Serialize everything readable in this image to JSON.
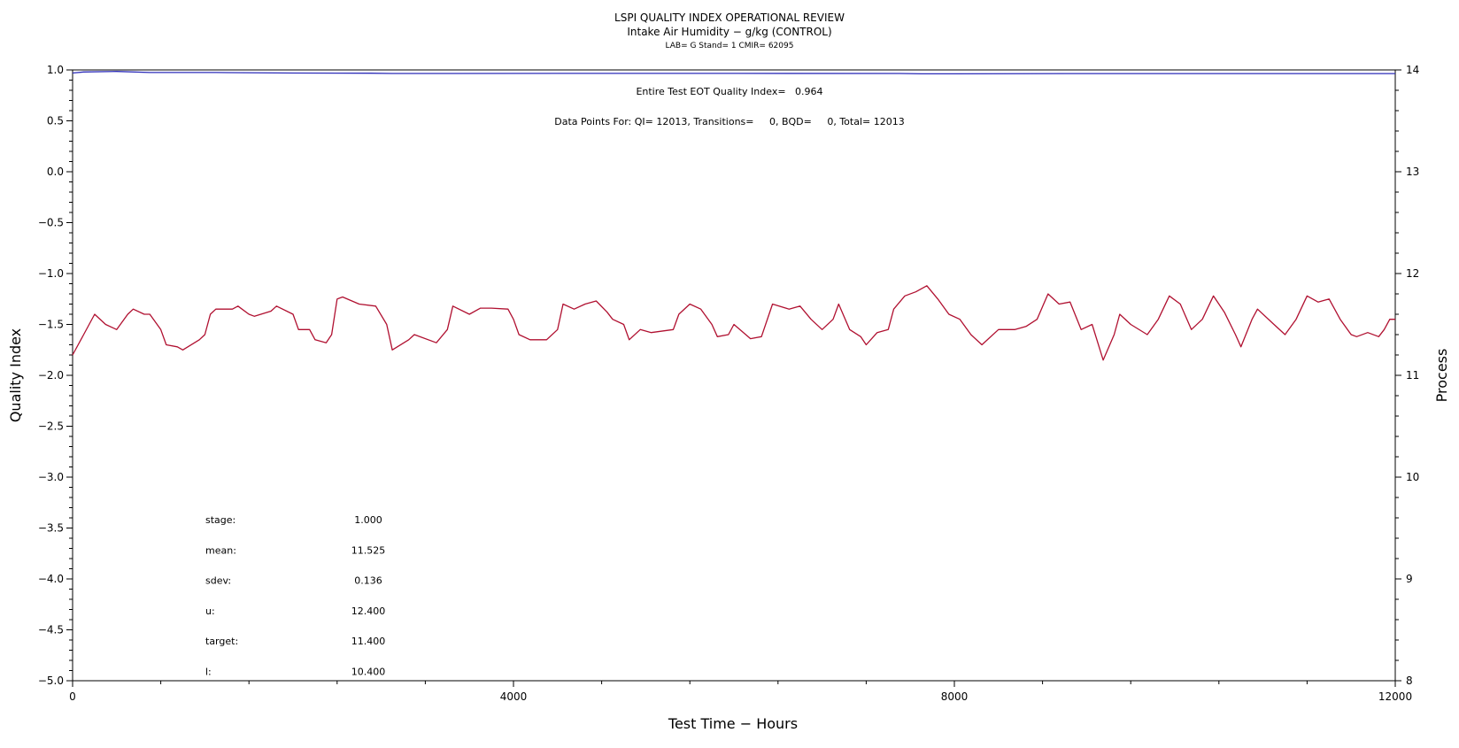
{
  "chart_data": {
    "type": "line",
    "title": "LSPI QUALITY INDEX OPERATIONAL REVIEW",
    "subtitle": "Intake Air Humidity − g/kg (CONTROL)",
    "subsubtitle": "LAB= G Stand= 1 CMIR= 62095",
    "xlabel": "Test Time − Hours",
    "ylabel_left": "Quality Index",
    "ylabel_right": "Process",
    "xlim": [
      0,
      12000
    ],
    "ylim_left": [
      -5.0,
      1.0
    ],
    "ylim_right": [
      8,
      14
    ],
    "x_ticks": [
      "0",
      "4000",
      "8000",
      "12000"
    ],
    "y_left_ticks": [
      "1.0",
      "0.5",
      "0.0",
      "−0.5",
      "−1.0",
      "−1.5",
      "−2.0",
      "−2.5",
      "−3.0",
      "−3.5",
      "−4.0",
      "−4.5",
      "−5.0"
    ],
    "y_right_ticks": [
      "14",
      "13",
      "12",
      "11",
      "10",
      "9",
      "8"
    ],
    "annotations": {
      "eot_quality_index": "Entire Test EOT Quality Index=   0.964",
      "data_points": "Data Points For: QI= 12013, Transitions=     0, BQD=     0, Total= 12013"
    },
    "stats": [
      {
        "label": "stage:",
        "value": "1.000"
      },
      {
        "label": "mean:",
        "value": "11.525"
      },
      {
        "label": "sdev:",
        "value": "0.136"
      },
      {
        "label": "u:",
        "value": "12.400"
      },
      {
        "label": "target:",
        "value": "11.400"
      },
      {
        "label": "l:",
        "value": "10.400"
      }
    ],
    "series": [
      {
        "axis": "left",
        "color": "#2b2bb8",
        "points": [
          [
            0,
            0.97
          ],
          [
            100,
            0.98
          ],
          [
            400,
            0.985
          ],
          [
            700,
            0.975
          ],
          [
            1300,
            0.975
          ],
          [
            2000,
            0.97
          ],
          [
            2700,
            0.968
          ],
          [
            2900,
            0.965
          ],
          [
            4500,
            0.966
          ],
          [
            6000,
            0.966
          ],
          [
            7500,
            0.965
          ],
          [
            7700,
            0.962
          ],
          [
            8000,
            0.962
          ],
          [
            9000,
            0.964
          ],
          [
            10000,
            0.964
          ],
          [
            11000,
            0.964
          ],
          [
            12000,
            0.964
          ]
        ]
      },
      {
        "axis": "right",
        "color": "#b01030",
        "points": [
          [
            0,
            11.2
          ],
          [
            100,
            11.4
          ],
          [
            200,
            11.6
          ],
          [
            300,
            11.5
          ],
          [
            400,
            11.45
          ],
          [
            500,
            11.6
          ],
          [
            550,
            11.65
          ],
          [
            650,
            11.6
          ],
          [
            700,
            11.6
          ],
          [
            800,
            11.45
          ],
          [
            850,
            11.3
          ],
          [
            950,
            11.28
          ],
          [
            1000,
            11.25
          ],
          [
            1150,
            11.35
          ],
          [
            1200,
            11.4
          ],
          [
            1250,
            11.6
          ],
          [
            1300,
            11.65
          ],
          [
            1450,
            11.65
          ],
          [
            1500,
            11.68
          ],
          [
            1600,
            11.6
          ],
          [
            1650,
            11.58
          ],
          [
            1800,
            11.63
          ],
          [
            1850,
            11.68
          ],
          [
            2000,
            11.6
          ],
          [
            2050,
            11.45
          ],
          [
            2150,
            11.45
          ],
          [
            2200,
            11.35
          ],
          [
            2300,
            11.32
          ],
          [
            2350,
            11.4
          ],
          [
            2400,
            11.75
          ],
          [
            2450,
            11.77
          ],
          [
            2600,
            11.7
          ],
          [
            2750,
            11.68
          ],
          [
            2850,
            11.5
          ],
          [
            2900,
            11.25
          ],
          [
            3050,
            11.35
          ],
          [
            3100,
            11.4
          ],
          [
            3300,
            11.32
          ],
          [
            3400,
            11.45
          ],
          [
            3450,
            11.68
          ],
          [
            3600,
            11.6
          ],
          [
            3700,
            11.66
          ],
          [
            3800,
            11.66
          ],
          [
            3950,
            11.65
          ],
          [
            4000,
            11.55
          ],
          [
            4050,
            11.4
          ],
          [
            4150,
            11.35
          ],
          [
            4300,
            11.35
          ],
          [
            4400,
            11.45
          ],
          [
            4450,
            11.7
          ],
          [
            4550,
            11.65
          ],
          [
            4650,
            11.7
          ],
          [
            4750,
            11.73
          ],
          [
            4850,
            11.62
          ],
          [
            4900,
            11.55
          ],
          [
            5000,
            11.5
          ],
          [
            5050,
            11.35
          ],
          [
            5150,
            11.45
          ],
          [
            5250,
            11.42
          ],
          [
            5450,
            11.45
          ],
          [
            5500,
            11.6
          ],
          [
            5600,
            11.7
          ],
          [
            5700,
            11.65
          ],
          [
            5800,
            11.5
          ],
          [
            5850,
            11.38
          ],
          [
            5950,
            11.4
          ],
          [
            6000,
            11.5
          ],
          [
            6150,
            11.36
          ],
          [
            6250,
            11.38
          ],
          [
            6350,
            11.7
          ],
          [
            6500,
            11.65
          ],
          [
            6600,
            11.68
          ],
          [
            6700,
            11.55
          ],
          [
            6800,
            11.45
          ],
          [
            6900,
            11.55
          ],
          [
            6950,
            11.7
          ],
          [
            7050,
            11.45
          ],
          [
            7150,
            11.38
          ],
          [
            7200,
            11.3
          ],
          [
            7300,
            11.42
          ],
          [
            7400,
            11.45
          ],
          [
            7450,
            11.65
          ],
          [
            7550,
            11.78
          ],
          [
            7650,
            11.82
          ],
          [
            7750,
            11.88
          ],
          [
            7850,
            11.75
          ],
          [
            7950,
            11.6
          ],
          [
            8050,
            11.55
          ],
          [
            8150,
            11.4
          ],
          [
            8250,
            11.3
          ],
          [
            8400,
            11.45
          ],
          [
            8550,
            11.45
          ],
          [
            8650,
            11.48
          ],
          [
            8750,
            11.55
          ],
          [
            8850,
            11.8
          ],
          [
            8950,
            11.7
          ],
          [
            9050,
            11.72
          ],
          [
            9150,
            11.45
          ],
          [
            9250,
            11.5
          ],
          [
            9350,
            11.15
          ],
          [
            9450,
            11.4
          ],
          [
            9500,
            11.6
          ],
          [
            9600,
            11.5
          ],
          [
            9750,
            11.4
          ],
          [
            9850,
            11.55
          ],
          [
            9950,
            11.78
          ],
          [
            10050,
            11.7
          ],
          [
            10150,
            11.45
          ],
          [
            10250,
            11.55
          ],
          [
            10350,
            11.78
          ],
          [
            10450,
            11.62
          ],
          [
            10550,
            11.4
          ],
          [
            10600,
            11.28
          ],
          [
            10700,
            11.55
          ],
          [
            10750,
            11.65
          ],
          [
            10900,
            11.5
          ],
          [
            11000,
            11.4
          ],
          [
            11100,
            11.55
          ],
          [
            11200,
            11.78
          ],
          [
            11300,
            11.72
          ],
          [
            11400,
            11.75
          ],
          [
            11500,
            11.55
          ],
          [
            11600,
            11.4
          ],
          [
            11650,
            11.38
          ],
          [
            11750,
            11.42
          ],
          [
            11850,
            11.38
          ],
          [
            11900,
            11.45
          ],
          [
            11950,
            11.55
          ],
          [
            12000,
            11.55
          ]
        ]
      }
    ]
  }
}
